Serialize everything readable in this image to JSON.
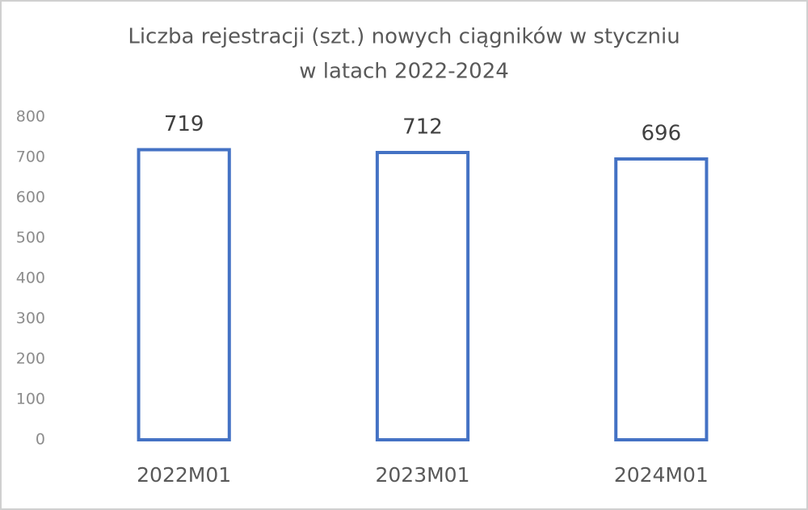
{
  "chart_data": {
    "type": "bar",
    "title": [
      "Liczba rejestracji (szt.) nowych ciągników w styczniu",
      "w latach 2022-2024"
    ],
    "categories": [
      "2022M01",
      "2023M01",
      "2024M01"
    ],
    "values": [
      719,
      712,
      696
    ],
    "color": "#4472c4",
    "ylim": [
      0,
      800
    ],
    "yticks": [
      0,
      100,
      200,
      300,
      400,
      500,
      600,
      700,
      800
    ]
  }
}
